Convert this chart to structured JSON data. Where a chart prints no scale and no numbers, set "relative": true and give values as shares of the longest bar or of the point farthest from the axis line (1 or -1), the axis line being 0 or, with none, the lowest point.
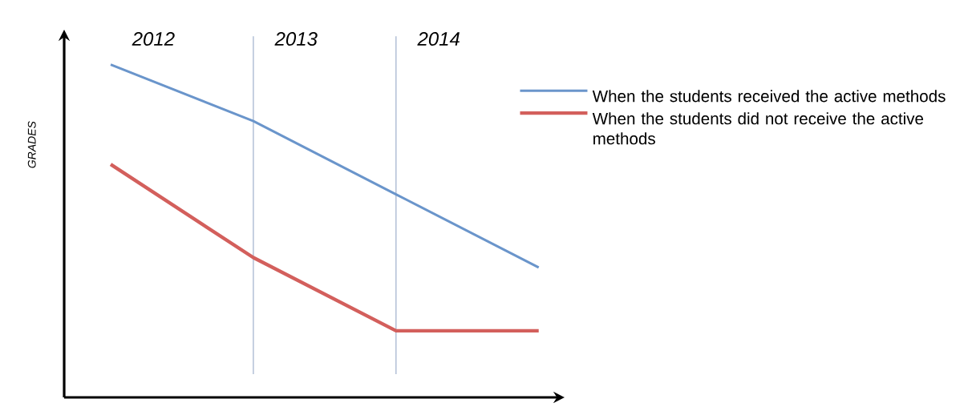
{
  "chart_data": {
    "type": "line",
    "relative": true,
    "ylabel": "GRADES",
    "categories": [
      null,
      null,
      null,
      null
    ],
    "series": [
      {
        "name": "When the students received the active methods",
        "color": "#6a95cb",
        "values": [
          1,
          0.83,
          0.61,
          0.39
        ]
      },
      {
        "name": "When the students did not receive the active methods",
        "color": "#d35f5c",
        "values": [
          0.7,
          0.42,
          0.2,
          0.2
        ]
      }
    ],
    "annotations": [
      "2012",
      "2013",
      "2014"
    ],
    "legend": "right",
    "marker": "none",
    "line_style": "solid"
  }
}
